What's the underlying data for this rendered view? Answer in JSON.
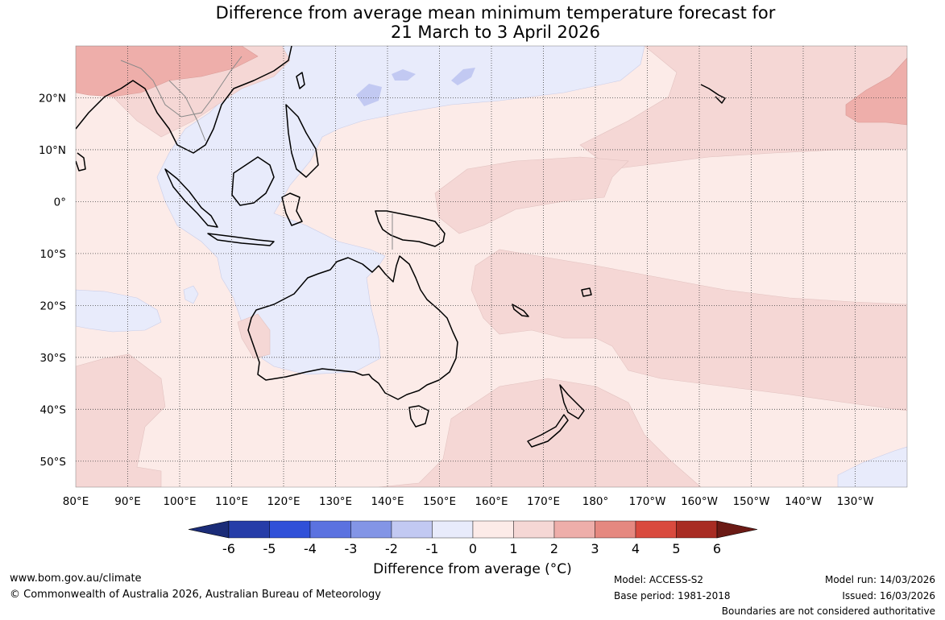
{
  "title": {
    "line1": "Difference from average mean minimum temperature forecast for",
    "line2": "21 March to 3 April 2026"
  },
  "map": {
    "lon_labels": [
      "80°E",
      "90°E",
      "100°E",
      "110°E",
      "120°E",
      "130°E",
      "140°E",
      "150°E",
      "160°E",
      "170°E",
      "180°",
      "170°W",
      "160°W",
      "150°W",
      "140°W",
      "130°W"
    ],
    "lat_labels": [
      "20°N",
      "10°N",
      "0°",
      "10°S",
      "20°S",
      "30°S",
      "40°S",
      "50°S"
    ],
    "lon_range": [
      80,
      240
    ],
    "lat_range": [
      -55,
      30
    ],
    "gridlines": "dotted",
    "region": "Indian Ocean, Maritime Continent, Australia and South-West Pacific"
  },
  "legend": {
    "title": "Difference from average (°C)",
    "ticks": [
      "-6",
      "-5",
      "-4",
      "-3",
      "-2",
      "-1",
      "0",
      "1",
      "2",
      "3",
      "4",
      "5",
      "6"
    ],
    "colors": [
      "#1b2c78",
      "#263da8",
      "#3050d8",
      "#5b72e0",
      "#8395e6",
      "#c2c9f2",
      "#e8ebfb",
      "#fcebe8",
      "#f5d7d5",
      "#eeaeaa",
      "#e58880",
      "#d94a3e",
      "#a82c23",
      "#6b1a15"
    ]
  },
  "footer": {
    "website": "www.bom.gov.au/climate",
    "copyright": "© Commonwealth of Australia 2026, Australian Bureau of Meteorology",
    "model": "Model: ACCESS-S2",
    "base_period": "Base period: 1981-2018",
    "model_run": "Model run: 14/03/2026",
    "issued": "Issued: 16/03/2026",
    "disclaimer": "Boundaries are not considered authoritative"
  }
}
